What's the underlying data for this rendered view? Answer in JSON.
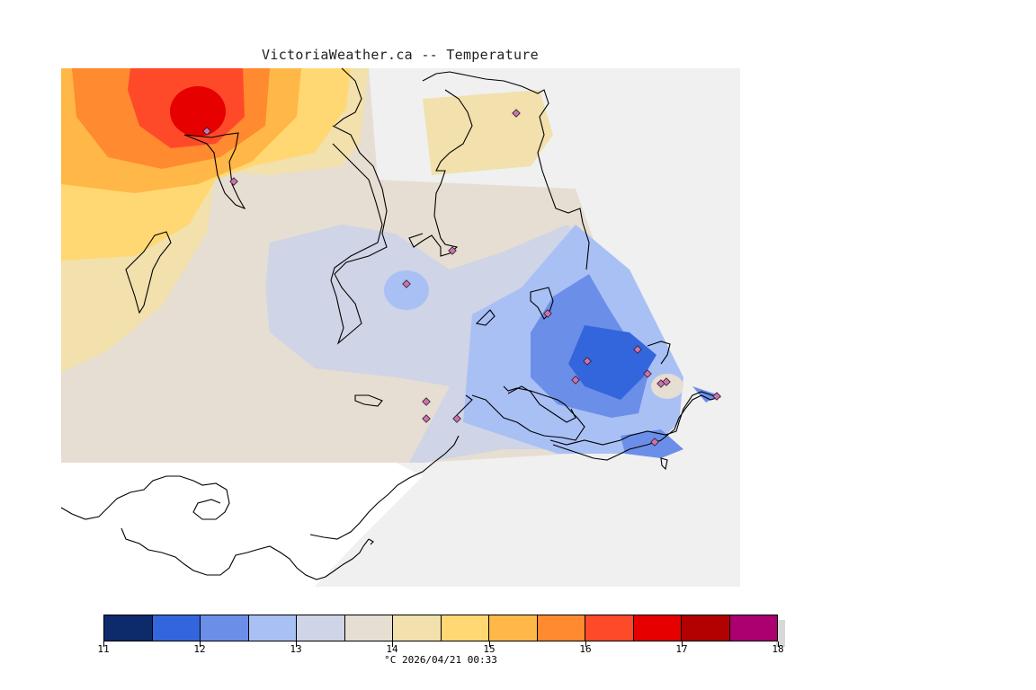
{
  "title": "VictoriaWeather.ca -- Temperature",
  "colorbar": {
    "colors": [
      "#0d2a6b",
      "#3366dd",
      "#6b8ee8",
      "#a9c0f5",
      "#cfd4e6",
      "#e6ded2",
      "#f2e0ad",
      "#ffd874",
      "#ffb847",
      "#ff8a30",
      "#ff4a2a",
      "#e60000",
      "#b30000",
      "#aa0070"
    ],
    "ticks": [
      "11",
      "12",
      "13",
      "14",
      "15",
      "16",
      "17",
      "18"
    ]
  },
  "footer": "°C  2026/04/21 00:33",
  "map": {
    "background": "#f0f0f0",
    "stations": 17
  }
}
